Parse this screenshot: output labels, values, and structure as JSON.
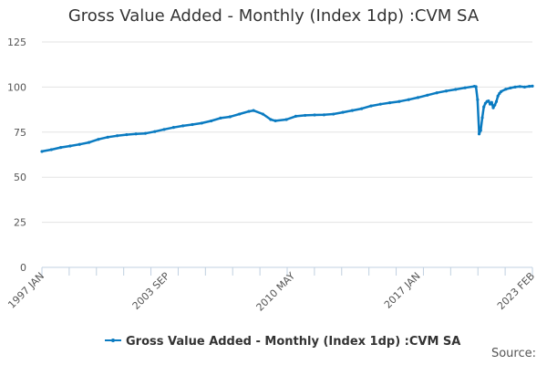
{
  "chart_data": {
    "type": "line",
    "title": "Gross Value Added - Monthly (Index 1dp) :CVM SA",
    "xlabel": "",
    "ylabel": "",
    "ylim": [
      0,
      125
    ],
    "yticks": [
      0,
      25,
      50,
      75,
      100,
      125
    ],
    "xlim": [
      "1997-01",
      "2023-02"
    ],
    "xtick_labels": [
      "1997 JAN",
      "2003 SEP",
      "2010 MAY",
      "2017 JAN",
      "2023 FEB"
    ],
    "xtick_dates": [
      "1997-01",
      "2003-09",
      "2010-05",
      "2017-01",
      "2023-02"
    ],
    "grid": "horizontal",
    "legend_position": "bottom",
    "series": [
      {
        "name": "Gross Value Added - Monthly (Index 1dp) :CVM SA",
        "color": "#0a7bc1",
        "points": [
          [
            "1997-01",
            64.3
          ],
          [
            "1997-07",
            65.3
          ],
          [
            "1998-01",
            66.5
          ],
          [
            "1998-07",
            67.3
          ],
          [
            "1999-01",
            68.2
          ],
          [
            "1999-07",
            69.3
          ],
          [
            "2000-01",
            71.0
          ],
          [
            "2000-07",
            72.2
          ],
          [
            "2001-01",
            73.0
          ],
          [
            "2001-07",
            73.6
          ],
          [
            "2002-01",
            74.0
          ],
          [
            "2002-07",
            74.3
          ],
          [
            "2003-01",
            75.3
          ],
          [
            "2003-07",
            76.5
          ],
          [
            "2004-01",
            77.6
          ],
          [
            "2004-07",
            78.5
          ],
          [
            "2005-01",
            79.2
          ],
          [
            "2005-07",
            80.0
          ],
          [
            "2006-01",
            81.2
          ],
          [
            "2006-07",
            82.8
          ],
          [
            "2007-01",
            83.5
          ],
          [
            "2007-07",
            85.0
          ],
          [
            "2008-01",
            86.5
          ],
          [
            "2008-04",
            87.0
          ],
          [
            "2008-10",
            85.0
          ],
          [
            "2009-03",
            82.0
          ],
          [
            "2009-06",
            81.3
          ],
          [
            "2010-01",
            82.0
          ],
          [
            "2010-07",
            83.8
          ],
          [
            "2011-01",
            84.3
          ],
          [
            "2011-07",
            84.5
          ],
          [
            "2012-01",
            84.6
          ],
          [
            "2012-07",
            85.0
          ],
          [
            "2013-01",
            86.0
          ],
          [
            "2013-07",
            87.0
          ],
          [
            "2014-01",
            88.0
          ],
          [
            "2014-07",
            89.5
          ],
          [
            "2015-01",
            90.5
          ],
          [
            "2015-07",
            91.3
          ],
          [
            "2016-01",
            92.0
          ],
          [
            "2016-07",
            93.0
          ],
          [
            "2017-01",
            94.2
          ],
          [
            "2017-07",
            95.5
          ],
          [
            "2018-01",
            96.8
          ],
          [
            "2018-07",
            97.8
          ],
          [
            "2019-01",
            98.7
          ],
          [
            "2019-07",
            99.6
          ],
          [
            "2020-01",
            100.4
          ],
          [
            "2020-02",
            100.2
          ],
          [
            "2020-03",
            93.0
          ],
          [
            "2020-04",
            74.0
          ],
          [
            "2020-05",
            76.0
          ],
          [
            "2020-06",
            83.0
          ],
          [
            "2020-07",
            89.0
          ],
          [
            "2020-08",
            91.0
          ],
          [
            "2020-09",
            92.0
          ],
          [
            "2020-10",
            92.3
          ],
          [
            "2020-11",
            90.5
          ],
          [
            "2020-12",
            91.5
          ],
          [
            "2021-01",
            88.5
          ],
          [
            "2021-02",
            90.0
          ],
          [
            "2021-03",
            92.0
          ],
          [
            "2021-04",
            95.0
          ],
          [
            "2021-05",
            96.5
          ],
          [
            "2021-06",
            97.5
          ],
          [
            "2021-09",
            98.8
          ],
          [
            "2021-12",
            99.5
          ],
          [
            "2022-03",
            100.0
          ],
          [
            "2022-06",
            100.3
          ],
          [
            "2022-09",
            100.0
          ],
          [
            "2022-12",
            100.4
          ],
          [
            "2023-02",
            100.5
          ]
        ]
      }
    ]
  },
  "legend": {
    "label": "Gross Value Added - Monthly (Index 1dp) :CVM SA"
  },
  "source_label": "Source:"
}
